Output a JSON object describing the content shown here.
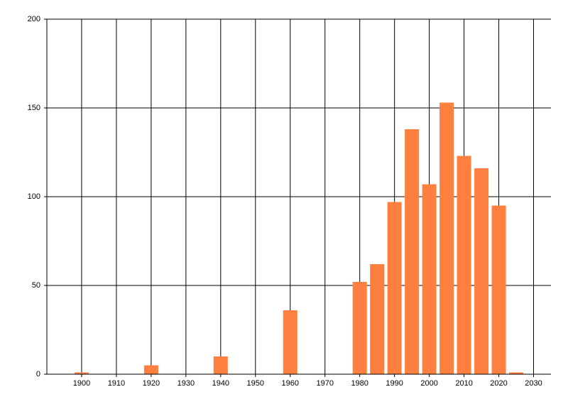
{
  "chart_data": {
    "type": "bar",
    "x": [
      1900,
      1920,
      1940,
      1960,
      1980,
      1985,
      1990,
      1995,
      2000,
      2005,
      2010,
      2015,
      2020,
      2025
    ],
    "values": [
      1,
      5,
      10,
      36,
      52,
      62,
      97,
      138,
      107,
      153,
      123,
      116,
      95,
      1
    ],
    "color": "#ff7f3f",
    "xlim": [
      1890,
      2035
    ],
    "xticks": [
      1900,
      1910,
      1920,
      1930,
      1940,
      1950,
      1960,
      1970,
      1980,
      1990,
      2000,
      2010,
      2020,
      2030
    ],
    "ylim": [
      0,
      200
    ],
    "yticks": [
      0,
      50,
      100,
      150,
      200
    ],
    "grid": true
  }
}
